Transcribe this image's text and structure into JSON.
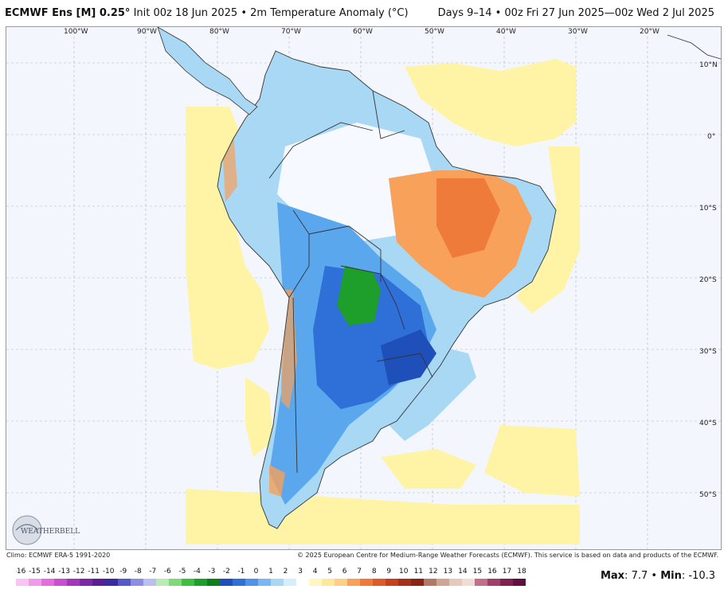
{
  "header": {
    "model": "ECMWF Ens [M] 0.25",
    "degree_sym": "°",
    "init": "Init 00z 18 Jun 2025",
    "sep": "•",
    "field": "2m Temperature Anomaly (°C)",
    "valid": "Days 9–14 • 00z Fri 27 Jun 2025—00z Wed 2 Jul 2025"
  },
  "map": {
    "lon_labels": [
      "100°W",
      "90°W",
      "80°W",
      "70°W",
      "60°W",
      "50°W",
      "40°W",
      "30°W",
      "20°W"
    ],
    "lat_labels": [
      "10°N",
      "0°",
      "10°S",
      "20°S",
      "30°S",
      "40°S",
      "50°S"
    ],
    "logo_text": "WEATHERBELL",
    "colors": {
      "ocean": "#f3f6fc",
      "light_blue": "#a9d8f5",
      "blue": "#5aa7ee",
      "deep_blue": "#2f6fd8",
      "green": "#1e9e2a",
      "yellow": "#fff3a6",
      "orange": "#f7a15a",
      "border": "#333333"
    }
  },
  "footer": {
    "climo": "Climo: ECMWF ERA-5 1991-2020",
    "copyright": "© 2025 European Centre for Medium-Range Weather Forecasts (ECMWF). This service is based on data and products of the ECMWF."
  },
  "colorbar": {
    "ticks": [
      "-16",
      "-15",
      "-14",
      "-13",
      "-12",
      "-11",
      "-10",
      "-9",
      "-8",
      "-7",
      "-6",
      "-5",
      "-4",
      "-3",
      "-2",
      "-1",
      "0",
      "1",
      "2",
      "3",
      "4",
      "5",
      "6",
      "7",
      "8",
      "9",
      "10",
      "11",
      "12",
      "13",
      "14",
      "15",
      "16",
      "17",
      "18"
    ],
    "colors": [
      "#f7c4f3",
      "#ef9bea",
      "#e46ddd",
      "#c94fd0",
      "#a436b9",
      "#7d28a4",
      "#5a1f93",
      "#3c2aa0",
      "#5659c9",
      "#8c8ee3",
      "#bcbdf0",
      "#b9ecb4",
      "#7fd97a",
      "#3fbf40",
      "#1e9e2a",
      "#0f7f1c",
      "#1f4fb8",
      "#2f6fd8",
      "#4e92ea",
      "#7ab6f2",
      "#a9d8f5",
      "#d5eefb",
      "#ffffff",
      "#fff7c2",
      "#ffe899",
      "#ffcf86",
      "#f7a15a",
      "#ef7b3a",
      "#e05a28",
      "#c8401c",
      "#a63018",
      "#8a2414",
      "#b07a66",
      "#cfa596",
      "#e6c9bd",
      "#f1dcd4",
      "#c0708a",
      "#a04068",
      "#802050",
      "#601040"
    ]
  },
  "stats": {
    "max_label": "Max",
    "max_value": "7.7",
    "min_label": "Min",
    "min_value": "-10.3"
  }
}
